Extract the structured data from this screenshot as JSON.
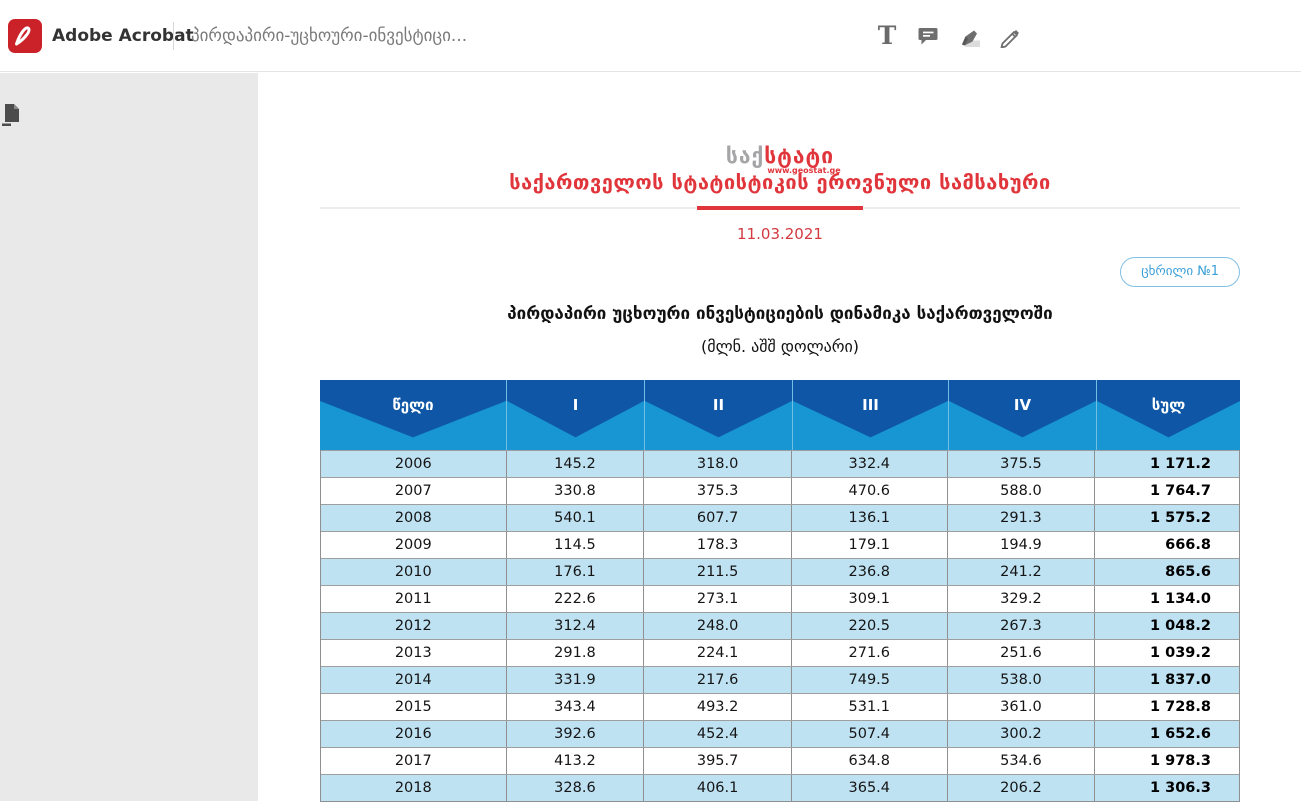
{
  "titlebar": {
    "app_name": "Adobe Acrobat",
    "document_title": "პირდაპირი-უცხოური-ინვესტიცი...",
    "tools": {
      "text_tool_glyph": "T",
      "icons": [
        "text-annotation-icon",
        "comment-icon",
        "highlighter-icon",
        "pencil-icon"
      ]
    }
  },
  "sidebar": {
    "icons": [
      "page-thumbnails-icon"
    ]
  },
  "document": {
    "logo": {
      "icon": "geostat-barchart-logo",
      "wordmark_gray": "საქ",
      "wordmark_red": "სტატი",
      "website": "www.geostat.ge"
    },
    "org_title": "საქართველოს სტატისტიკის ეროვნული სამსახური",
    "date": "11.03.2021",
    "badge_label": "ცხრილი №1",
    "table_title": "პირდაპირი უცხოური ინვესტიციების დინამიკა საქართველოში",
    "table_subtitle": "(მლნ. აშშ დოლარი)"
  },
  "table": {
    "columns": [
      "წელი",
      "I",
      "II",
      "III",
      "IV",
      "სულ"
    ],
    "rows": [
      [
        "2006",
        "145.2",
        "318.0",
        "332.4",
        "375.5",
        "1 171.2"
      ],
      [
        "2007",
        "330.8",
        "375.3",
        "470.6",
        "588.0",
        "1 764.7"
      ],
      [
        "2008",
        "540.1",
        "607.7",
        "136.1",
        "291.3",
        "1 575.2"
      ],
      [
        "2009",
        "114.5",
        "178.3",
        "179.1",
        "194.9",
        "666.8"
      ],
      [
        "2010",
        "176.1",
        "211.5",
        "236.8",
        "241.2",
        "865.6"
      ],
      [
        "2011",
        "222.6",
        "273.1",
        "309.1",
        "329.2",
        "1 134.0"
      ],
      [
        "2012",
        "312.4",
        "248.0",
        "220.5",
        "267.3",
        "1 048.2"
      ],
      [
        "2013",
        "291.8",
        "224.1",
        "271.6",
        "251.6",
        "1 039.2"
      ],
      [
        "2014",
        "331.9",
        "217.6",
        "749.5",
        "538.0",
        "1 837.0"
      ],
      [
        "2015",
        "343.4",
        "493.2",
        "531.1",
        "361.0",
        "1 728.8"
      ],
      [
        "2016",
        "392.6",
        "452.4",
        "507.4",
        "300.2",
        "1 652.6"
      ],
      [
        "2017",
        "413.2",
        "395.7",
        "634.8",
        "534.6",
        "1 978.3"
      ],
      [
        "2018",
        "328.6",
        "406.1",
        "365.4",
        "206.2",
        "1 306.3"
      ]
    ]
  },
  "colors": {
    "brand_red": "#e0353b",
    "header_dark_blue": "#0f57a6",
    "header_light_blue": "#1796d3",
    "row_blue": "#bfe2f3",
    "badge_blue": "#3a9fd8",
    "logo_bar_gray": "#a6a6a8",
    "adobe_red": "#cb2128"
  }
}
